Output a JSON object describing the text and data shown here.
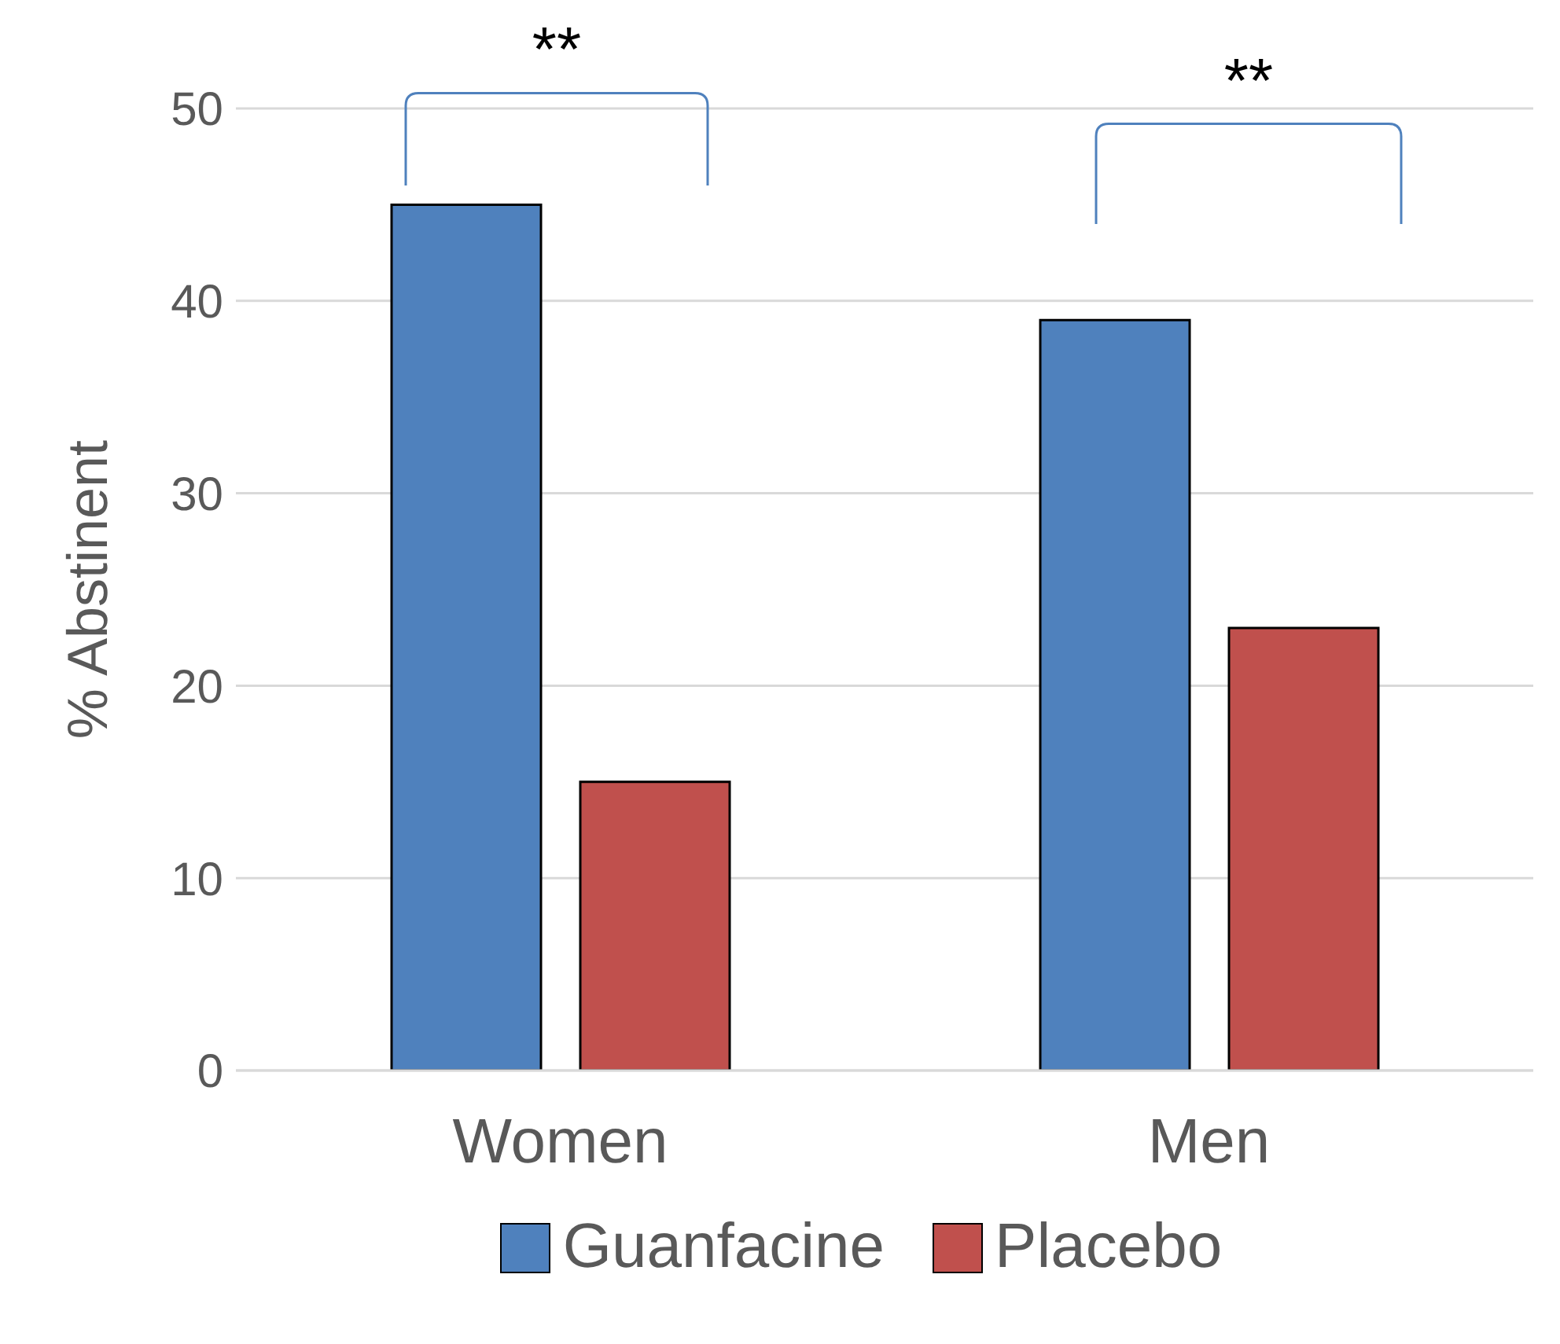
{
  "chart_data": {
    "type": "bar",
    "ylabel": "% Abstinent",
    "categories": [
      "Women",
      "Men"
    ],
    "series": [
      {
        "name": "Guanfacine",
        "color": "#4f81bd",
        "values": [
          45,
          39
        ]
      },
      {
        "name": "Placebo",
        "color": "#c0504d",
        "values": [
          15,
          23
        ]
      }
    ],
    "ylim": [
      0,
      50
    ],
    "yticks": [
      0,
      10,
      20,
      30,
      40,
      50
    ],
    "grid": "y",
    "legend": "bottom",
    "annotations": [
      "**",
      "**"
    ]
  }
}
